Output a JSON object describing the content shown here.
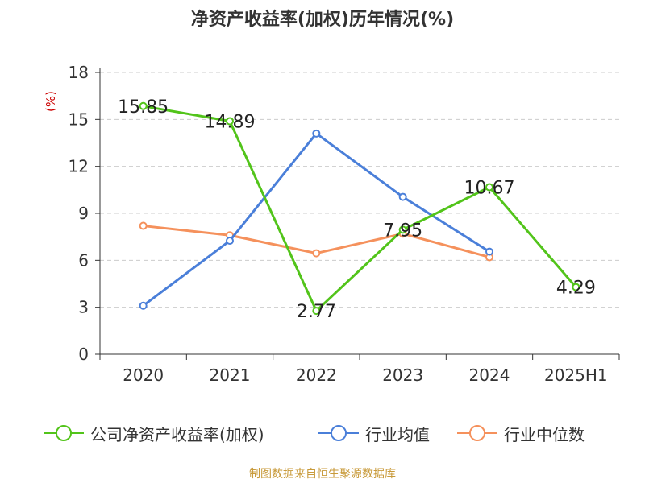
{
  "chart_data": {
    "type": "line",
    "title": "净资产收益率(加权)历年情况(%)",
    "ylabel": "(%)",
    "xlabel": "",
    "categories": [
      "2020",
      "2021",
      "2022",
      "2023",
      "2024",
      "2025H1"
    ],
    "ylim": [
      0,
      18
    ],
    "yticks": [
      "0",
      "3",
      "6",
      "9",
      "12",
      "15",
      "18"
    ],
    "grid": true,
    "legend_position": "bottom",
    "series": [
      {
        "name": "公司净资产收益率(加权)",
        "color": "#52c41a",
        "values": [
          15.85,
          14.89,
          2.77,
          7.95,
          10.67,
          4.29
        ],
        "data_labels": [
          "15.85",
          "14.89",
          "2.77",
          "7.95",
          "10.67",
          "4.29"
        ]
      },
      {
        "name": "行业均值",
        "color": "#4a7fd9",
        "values": [
          3.1,
          7.25,
          14.1,
          10.05,
          6.55,
          null
        ]
      },
      {
        "name": "行业中位数",
        "color": "#f5915c",
        "values": [
          8.2,
          7.6,
          6.45,
          7.7,
          6.2,
          null
        ]
      }
    ]
  },
  "source_note": "制图数据来自恒生聚源数据库"
}
